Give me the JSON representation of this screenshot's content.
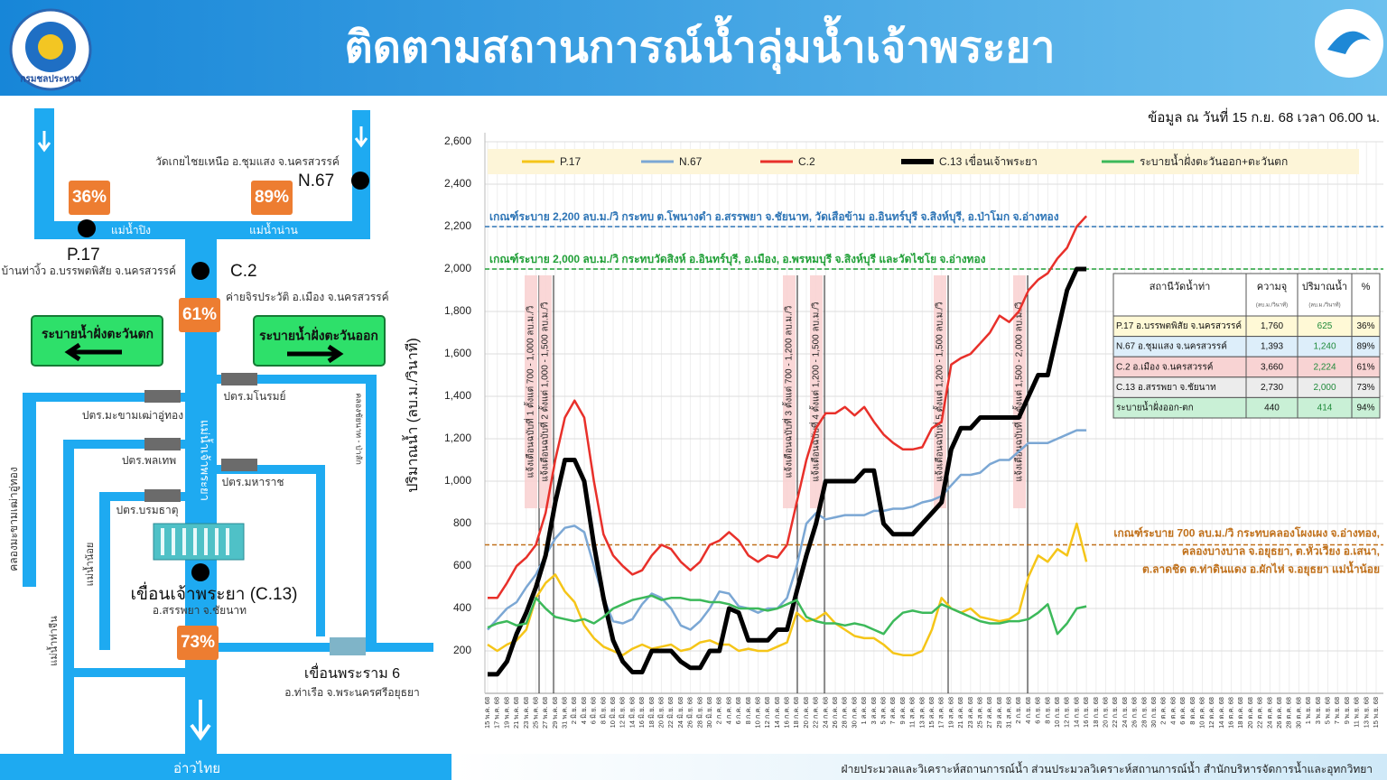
{
  "header": {
    "title": "ติดตามสถานการณ์น้ำลุ่มน้ำเจ้าพระยา",
    "logo_text": "กรมชลประทาน",
    "date": "ข้อมูล ณ วันที่ 15 ก.ย. 68 เวลา 06.00 น."
  },
  "diagram": {
    "n67": {
      "code": "N.67",
      "location": "วัดเกยไชยเหนือ อ.ชุมแสง จ.นครสวรรค์",
      "percent": "89%"
    },
    "p17": {
      "code": "P.17",
      "location": "บ้านท่างิ้ว อ.บรรพตพิสัย จ.นครสวรรค์",
      "percent": "36%"
    },
    "c2": {
      "code": "C.2",
      "location": "ค่ายจิรประวัติ อ.เมือง จ.นครสวรรค์",
      "percent": "61%"
    },
    "c13": {
      "name": "เขื่อนเจ้าพระยา (C.13)",
      "location": "อ.สรรพยา จ.ชัยนาท",
      "percent": "73%"
    },
    "rama6": {
      "name": "เขื่อนพระราม 6",
      "location": "อ.ท่าเรือ จ.พระนครศรีอยุธยา"
    },
    "rivers": {
      "ping": "แม่น้ำปิง",
      "nan": "แม่น้ำน่าน",
      "chao_phraya": "แม่น้ำเจ้าพระยา",
      "noi": "แม่น้ำน้อย",
      "tha_chin": "แม่น้ำท่าจีน",
      "makham_canal": "คลองมะขามเฒ่าอู่ทอง",
      "chainat_canal": "คลองชัยนาท - ป่าสัก",
      "gulf": "อ่าวไทย"
    },
    "gates": {
      "makham": "ปตร.มะขามเฒ่าอู่ทอง",
      "manorom": "ปตร.มโนรมย์",
      "phonthep": "ปตร.พลเทพ",
      "maharaj": "ปตร.มหาราช",
      "boromathat": "ปตร.บรมธาตุ"
    },
    "buttons": {
      "west": "ระบายน้ำฝั่งตะวันตก",
      "east": "ระบายน้ำฝั่งตะวันออก"
    }
  },
  "chart_data": {
    "type": "line",
    "y_label": "ปริมาณน้ำ (ลบ.ม./วินาที)",
    "categories": [
      "15 พ.ค. 68",
      "17 พ.ค. 68",
      "19 พ.ค. 68",
      "21 พ.ค. 68",
      "23 พ.ค. 68",
      "25 พ.ค. 68",
      "27 พ.ค. 68",
      "29 พ.ค. 68",
      "31 พ.ค. 68",
      "2 มิ.ย. 68",
      "4 มิ.ย. 68",
      "6 มิ.ย. 68",
      "8 มิ.ย. 68",
      "10 มิ.ย. 68",
      "12 มิ.ย. 68",
      "14 มิ.ย. 68",
      "16 มิ.ย. 68",
      "18 มิ.ย. 68",
      "20 มิ.ย. 68",
      "22 มิ.ย. 68",
      "24 มิ.ย. 68",
      "26 มิ.ย. 68",
      "28 มิ.ย. 68",
      "30 มิ.ย. 68",
      "2 ก.ค. 68",
      "4 ก.ค. 68",
      "6 ก.ค. 68",
      "8 ก.ค. 68",
      "10 ก.ค. 68",
      "12 ก.ค. 68",
      "14 ก.ค. 68",
      "16 ก.ค. 68",
      "18 ก.ค. 68",
      "20 ก.ค. 68",
      "22 ก.ค. 68",
      "24 ก.ค. 68",
      "26 ก.ค. 68",
      "28 ก.ค. 68",
      "30 ก.ค. 68",
      "1 ส.ค. 68",
      "3 ส.ค. 68",
      "5 ส.ค. 68",
      "7 ส.ค. 68",
      "9 ส.ค. 68",
      "11 ส.ค. 68",
      "13 ส.ค. 68",
      "15 ส.ค. 68",
      "17 ส.ค. 68",
      "19 ส.ค. 68",
      "21 ส.ค. 68",
      "23 ส.ค. 68",
      "25 ส.ค. 68",
      "27 ส.ค. 68",
      "29 ส.ค. 68",
      "31 ส.ค. 68",
      "2 ก.ย. 68",
      "4 ก.ย. 68",
      "6 ก.ย. 68",
      "8 ก.ย. 68",
      "10 ก.ย. 68",
      "12 ก.ย. 68",
      "14 ก.ย. 68",
      "16 ก.ย. 68",
      "18 ก.ย. 68",
      "20 ก.ย. 68",
      "22 ก.ย. 68",
      "24 ก.ย. 68",
      "26 ก.ย. 68",
      "28 ก.ย. 68",
      "30 ก.ย. 68",
      "2 ต.ค. 68",
      "4 ต.ค. 68",
      "6 ต.ค. 68",
      "8 ต.ค. 68",
      "10 ต.ค. 68",
      "12 ต.ค. 68",
      "14 ต.ค. 68",
      "16 ต.ค. 68",
      "18 ต.ค. 68",
      "20 ต.ค. 68",
      "22 ต.ค. 68",
      "24 ต.ค. 68",
      "26 ต.ค. 68",
      "28 ต.ค. 68",
      "30 ต.ค. 68",
      "1 พ.ย. 68",
      "3 พ.ย. 68",
      "5 พ.ย. 68",
      "7 พ.ย. 68",
      "9 พ.ย. 68",
      "11 พ.ย. 68",
      "13 พ.ย. 68",
      "15 พ.ย. 68"
    ],
    "series": [
      {
        "name": "P.17",
        "color": "#f5c518",
        "values": [
          230,
          200,
          230,
          250,
          300,
          450,
          520,
          560,
          480,
          430,
          320,
          260,
          220,
          200,
          180,
          210,
          230,
          210,
          220,
          230,
          200,
          210,
          240,
          250,
          230,
          230,
          200,
          210,
          200,
          200,
          220,
          240,
          380,
          340,
          350,
          380,
          330,
          300,
          270,
          260,
          260,
          230,
          190,
          180,
          180,
          200,
          300,
          450,
          400,
          380,
          400,
          360,
          350,
          340,
          350,
          380,
          550,
          650,
          620,
          680,
          650,
          800,
          620,
          null,
          null,
          null,
          null,
          null,
          null,
          null,
          null,
          null,
          null,
          null,
          null,
          null,
          null,
          null,
          null,
          null,
          null,
          null,
          null,
          null,
          null,
          null,
          null,
          null,
          null,
          null,
          null,
          null,
          null
        ]
      },
      {
        "name": "N.67",
        "color": "#7ba7d4",
        "values": [
          300,
          350,
          400,
          430,
          500,
          560,
          650,
          730,
          780,
          790,
          760,
          600,
          450,
          340,
          330,
          350,
          420,
          470,
          450,
          400,
          320,
          300,
          340,
          400,
          480,
          470,
          410,
          400,
          380,
          400,
          400,
          450,
          600,
          800,
          850,
          820,
          830,
          840,
          840,
          840,
          860,
          860,
          870,
          870,
          880,
          900,
          910,
          930,
          980,
          1030,
          1030,
          1040,
          1080,
          1100,
          1100,
          1140,
          1180,
          1180,
          1180,
          1200,
          1220,
          1240,
          1240,
          null,
          null,
          null,
          null,
          null,
          null,
          null,
          null,
          null,
          null,
          null,
          null,
          null,
          null,
          null,
          null,
          null,
          null,
          null,
          null,
          null,
          null,
          null,
          null,
          null,
          null,
          null,
          null,
          null,
          null
        ]
      },
      {
        "name": "C.2",
        "color": "#e8302a",
        "values": [
          450,
          450,
          520,
          600,
          640,
          700,
          850,
          1100,
          1300,
          1380,
          1300,
          1000,
          750,
          650,
          600,
          560,
          580,
          650,
          700,
          680,
          620,
          580,
          620,
          700,
          720,
          760,
          720,
          650,
          620,
          650,
          640,
          700,
          900,
          1100,
          1250,
          1320,
          1320,
          1350,
          1310,
          1350,
          1280,
          1220,
          1180,
          1150,
          1150,
          1160,
          1250,
          1280,
          1550,
          1580,
          1600,
          1650,
          1700,
          1780,
          1750,
          1800,
          1900,
          1950,
          1980,
          2050,
          2100,
          2200,
          2250,
          null,
          null,
          null,
          null,
          null,
          null,
          null,
          null,
          null,
          null,
          null,
          null,
          null,
          null,
          null,
          null,
          null,
          null,
          null,
          null,
          null,
          null,
          null,
          null,
          null,
          null,
          null,
          null,
          null,
          null
        ]
      },
      {
        "name": "C.13 เขื่อนเจ้าพระยา",
        "color": "#000000",
        "values": [
          90,
          90,
          150,
          280,
          380,
          500,
          650,
          900,
          1100,
          1100,
          1000,
          700,
          450,
          250,
          150,
          100,
          100,
          200,
          200,
          200,
          150,
          120,
          120,
          200,
          200,
          400,
          380,
          250,
          250,
          250,
          300,
          300,
          480,
          650,
          800,
          1000,
          1000,
          1000,
          1000,
          1050,
          1050,
          800,
          750,
          750,
          750,
          800,
          850,
          900,
          1150,
          1250,
          1250,
          1300,
          1300,
          1300,
          1300,
          1300,
          1400,
          1500,
          1500,
          1700,
          1900,
          2000,
          2000,
          null,
          null,
          null,
          null,
          null,
          null,
          null,
          null,
          null,
          null,
          null,
          null,
          null,
          null,
          null,
          null,
          null,
          null,
          null,
          null,
          null,
          null,
          null,
          null,
          null,
          null,
          null,
          null,
          null,
          null
        ]
      },
      {
        "name": "ระบายน้ำฝั่งตะวันออก+ตะวันตก",
        "color": "#3cb95a",
        "values": [
          310,
          330,
          340,
          320,
          330,
          450,
          400,
          360,
          350,
          340,
          350,
          330,
          360,
          400,
          420,
          440,
          450,
          460,
          440,
          450,
          450,
          440,
          440,
          430,
          430,
          420,
          400,
          400,
          400,
          390,
          400,
          420,
          440,
          360,
          340,
          330,
          330,
          320,
          330,
          320,
          300,
          280,
          340,
          380,
          390,
          380,
          380,
          420,
          400,
          380,
          360,
          340,
          330,
          330,
          340,
          340,
          350,
          380,
          420,
          280,
          330,
          400,
          410,
          null,
          null,
          null,
          null,
          null,
          null,
          null,
          null,
          null,
          null,
          null,
          null,
          null,
          null,
          null,
          null,
          null,
          null,
          null,
          null,
          null,
          null,
          null,
          null,
          null,
          null,
          null,
          null,
          null,
          null
        ]
      }
    ],
    "ylim": [
      0,
      2600
    ],
    "yticks": [
      200,
      400,
      600,
      800,
      {
        "value": 1000,
        "label": "1,000"
      },
      {
        "value": 1200,
        "label": "1,200"
      },
      {
        "value": 1400,
        "label": "1,400"
      },
      {
        "value": 1600,
        "label": "1,600"
      },
      {
        "value": 1800,
        "label": "1,800"
      },
      {
        "value": 2000,
        "label": "2,000"
      },
      {
        "value": 2200,
        "label": "2,200"
      },
      {
        "value": 2400,
        "label": "2,400"
      },
      {
        "value": 2600,
        "label": "2,600"
      }
    ],
    "grid": true,
    "reference_lines": [
      {
        "value": 2200,
        "color": "#2e75b6",
        "lines": [
          "เกณฑ์ระบาย 2,200 ลบ.ม./วิ กระทบ ต.โพนางดำ อ.สรรพยา จ.ชัยนาท, วัดเสือข้าม อ.อินทร์บุรี จ.สิงห์บุรี, อ.ป่าโมก จ.อ่างทอง"
        ]
      },
      {
        "value": 2000,
        "color": "#21a038",
        "lines": [
          "เกณฑ์ระบาย 2,000 ลบ.ม./วิ กระทบวัดสิงห์ อ.อินทร์บุรี, อ.เมือง, อ.พรหมบุรี จ.สิงห์บุรี และวัดไชโย จ.อ่างทอง"
        ]
      },
      {
        "value": 700,
        "color": "#c0701a",
        "lines": [
          "เกณฑ์ระบาย 700 ลบ.ม./วิ กระทบคลองโผงเผง จ.อ่างทอง,",
          "คลองบางบาล จ.อยุธยา, ต.หัวเวียง อ.เสนา,",
          "ต.ลาดชิด ต.ท่าดินแดง อ.ผักไห่ จ.อยุธยา แม่น้ำน้อย"
        ]
      }
    ],
    "events": [
      "แจ้งเตือนฉบับที่ 1 ตั้งแต่ 700 - 1,000 ลบ.ม./วิ",
      "แจ้งเตือนฉบับที่ 2 ตั้งแต่ 1,000 - 1,500 ลบ.ม./วิ",
      "แจ้งเตือนฉบับที่ 3 ตั้งแต่ 700 - 1,200 ลบ.ม./วิ",
      "แจ้งเตือนฉบับที่ 4 ตั้งแต่ 1,200 - 1,500 ลบ.ม./วิ",
      "แจ้งเตือนฉบับที่ 5 ตั้งแต่ 1,200 - 1,500 ลบ.ม./วิ",
      "แจ้งเตือนฉบับที่ 6 ตั้งแต่ 1,500 - 2,000 ลบ.ม./วิ"
    ],
    "legend": "top"
  },
  "table": {
    "header": [
      "สถานีวัดน้ำท่า",
      "ความจุ",
      "ปริมาณน้ำ",
      "%"
    ],
    "units": [
      "(ลบ.ม./วินาที)",
      "(ลบ.ม./วินาที)"
    ],
    "rows": [
      [
        "P.17 อ.บรรพตพิสัย จ.นครสวรรค์",
        "1,760",
        "625",
        "36%"
      ],
      [
        "N.67 อ.ชุมแสง จ.นครสวรรค์",
        "1,393",
        "1,240",
        "89%"
      ],
      [
        "C.2 อ.เมือง จ.นครสวรรค์",
        "3,660",
        "2,224",
        "61%"
      ],
      [
        "C.13 อ.สรรพยา จ.ชัยนาท",
        "2,730",
        "2,000",
        "73%"
      ],
      [
        "ระบายน้ำฝั่งออก-ตก",
        "440",
        "414",
        "94%"
      ]
    ]
  },
  "footer": "ฝ่ายประมวลและวิเคราะห์สถานการณ์น้ำ ส่วนประมวลวิเคราะห์สถานการณ์น้ำ สำนักบริหารจัดการน้ำและอุทกวิทยา"
}
